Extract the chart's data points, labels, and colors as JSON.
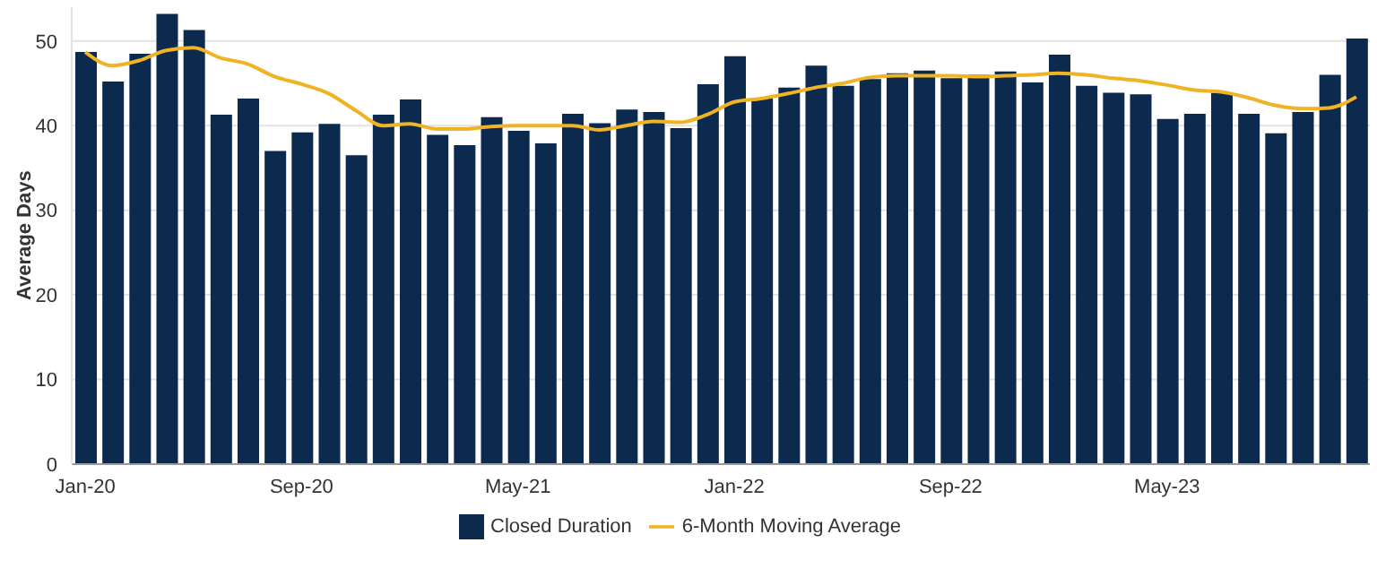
{
  "chart_data": {
    "type": "bar",
    "ylabel": "Average Days",
    "categories": [
      "Jan-20",
      null,
      null,
      null,
      null,
      null,
      null,
      null,
      "Sep-20",
      null,
      null,
      null,
      null,
      null,
      null,
      null,
      "May-21",
      null,
      null,
      null,
      null,
      null,
      null,
      null,
      "Jan-22",
      null,
      null,
      null,
      null,
      null,
      null,
      null,
      "Sep-22",
      null,
      null,
      null,
      null,
      null,
      null,
      null,
      "May-23",
      null,
      null,
      null,
      null,
      null,
      null,
      null
    ],
    "series": [
      {
        "name": "Closed Duration",
        "color": "#0b2a4e",
        "values": [
          48.7,
          45.2,
          48.5,
          53.2,
          51.3,
          41.3,
          43.2,
          37.0,
          39.2,
          40.2,
          36.5,
          41.3,
          43.1,
          38.9,
          37.7,
          41.0,
          39.4,
          37.9,
          41.4,
          40.3,
          41.9,
          41.6,
          39.7,
          44.9,
          48.2,
          43.2,
          44.5,
          47.1,
          44.7,
          45.5,
          46.2,
          46.5,
          45.6,
          46.0,
          46.4,
          45.1,
          48.4,
          44.7,
          43.9,
          43.7,
          40.8,
          41.4,
          43.9,
          41.4,
          39.1,
          41.6,
          46.0,
          50.3
        ]
      },
      {
        "name": "6-Month Moving Average",
        "type": "line",
        "color": "#f0b323",
        "values": [
          48.7,
          47.1,
          47.7,
          48.9,
          49.2,
          48.0,
          47.3,
          45.8,
          44.9,
          43.8,
          41.8,
          40.0,
          40.2,
          39.6,
          39.6,
          39.9,
          40.0,
          40.0,
          40.0,
          39.5,
          40.0,
          40.5,
          40.4,
          41.3,
          42.8,
          43.2,
          43.8,
          44.5,
          45.0,
          45.7,
          45.9,
          45.9,
          45.9,
          45.8,
          45.9,
          46.0,
          46.2,
          46.0,
          45.6,
          45.3,
          44.8,
          44.2,
          44.0,
          43.3,
          42.4,
          42.0,
          42.1,
          43.4
        ]
      }
    ],
    "ylim": [
      0,
      54
    ],
    "yticks": [
      0,
      10,
      20,
      30,
      40,
      50
    ],
    "grid": "y",
    "legend": "bottom",
    "marker": "none"
  }
}
